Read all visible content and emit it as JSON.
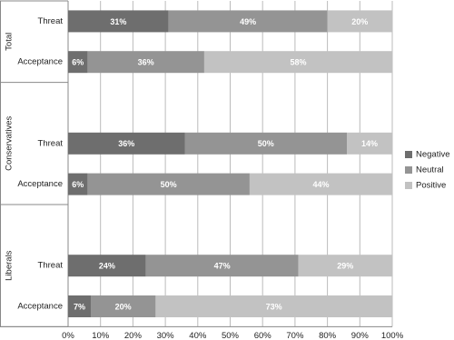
{
  "chart_data": {
    "type": "stacked-bar-horizontal",
    "groups": [
      "Total",
      "Conservatives",
      "Liberals"
    ],
    "categories": [
      "Threat",
      "Acceptance",
      "Threat",
      "Acceptance",
      "Threat",
      "Acceptance"
    ],
    "series": [
      {
        "name": "Negative",
        "color": "#6e6e6e",
        "values": [
          31,
          6,
          36,
          6,
          24,
          7
        ],
        "value_labels": [
          "31%",
          "6%",
          "36%",
          "6%",
          "24%",
          "7%"
        ]
      },
      {
        "name": "Neutral",
        "color": "#949494",
        "values": [
          49,
          36,
          50,
          50,
          47,
          20
        ],
        "value_labels": [
          "49%",
          "36%",
          "50%",
          "50%",
          "47%",
          "20%"
        ]
      },
      {
        "name": "Positive",
        "color": "#c2c2c2",
        "values": [
          20,
          58,
          14,
          44,
          29,
          73
        ],
        "value_labels": [
          "20%",
          "58%",
          "14%",
          "44%",
          "29%",
          "73%"
        ]
      }
    ],
    "xlim": [
      0,
      100
    ],
    "xticks": [
      {
        "value": 0,
        "label": "0%"
      },
      {
        "value": 10,
        "label": "10%"
      },
      {
        "value": 20,
        "label": "20%"
      },
      {
        "value": 30,
        "label": "30%"
      },
      {
        "value": 40,
        "label": "40%"
      },
      {
        "value": 50,
        "label": "50%"
      },
      {
        "value": 60,
        "label": "60%"
      },
      {
        "value": 70,
        "label": "70%"
      },
      {
        "value": 80,
        "label": "80%"
      },
      {
        "value": 90,
        "label": "90%"
      },
      {
        "value": 100,
        "label": "100%"
      }
    ],
    "grid": true,
    "legend": "right"
  }
}
